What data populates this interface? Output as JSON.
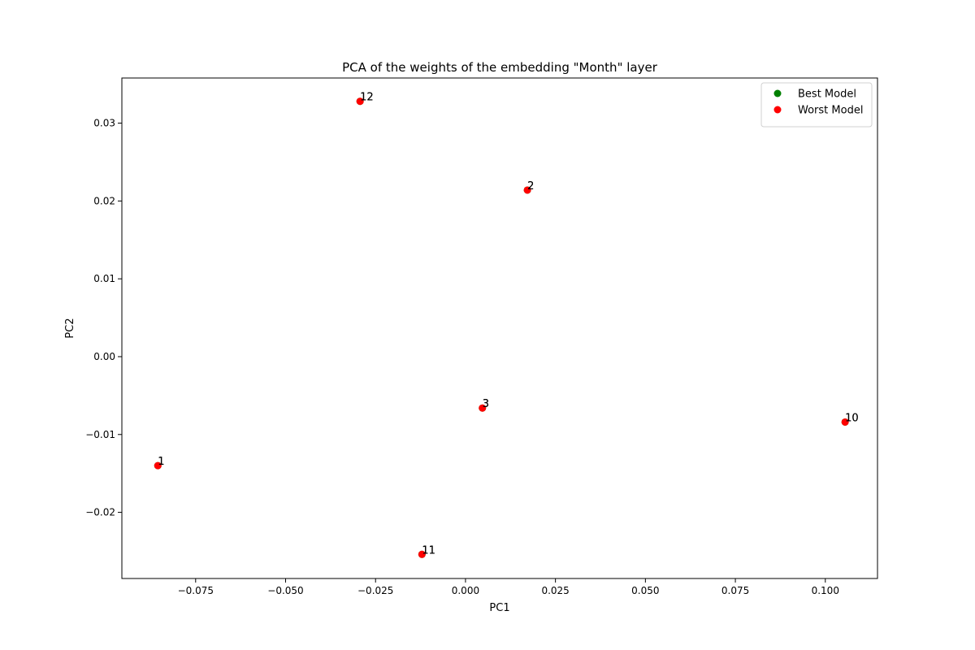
{
  "chart_data": {
    "type": "scatter",
    "title": "PCA of the weights of the embedding \"Month\" layer",
    "xlabel": "PC1",
    "ylabel": "PC2",
    "xlim": [
      -0.0955,
      0.1145
    ],
    "ylim": [
      -0.0285,
      0.0358
    ],
    "xticks": [
      -0.075,
      -0.05,
      -0.025,
      0.0,
      0.025,
      0.05,
      0.075,
      0.1
    ],
    "xtick_labels": [
      "−0.075",
      "−0.050",
      "−0.025",
      "0.000",
      "0.025",
      "0.050",
      "0.075",
      "0.100"
    ],
    "yticks": [
      -0.02,
      -0.01,
      0.0,
      0.01,
      0.02,
      0.03
    ],
    "ytick_labels": [
      "−0.02",
      "−0.01",
      "0.00",
      "0.01",
      "0.02",
      "0.03"
    ],
    "grid": false,
    "legend_position": "top-right",
    "series": [
      {
        "name": "Best Model",
        "color": "#008000",
        "points": [
          {
            "label": "1",
            "x": -0.0855,
            "y": -0.014
          },
          {
            "label": "12",
            "x": -0.0293,
            "y": 0.0328
          },
          {
            "label": "2",
            "x": 0.0172,
            "y": 0.0214
          },
          {
            "label": "3",
            "x": 0.0047,
            "y": -0.0066
          },
          {
            "label": "11",
            "x": -0.0121,
            "y": -0.0254
          },
          {
            "label": "10",
            "x": 0.1055,
            "y": -0.0084
          }
        ]
      },
      {
        "name": "Worst Model",
        "color": "#ff0000",
        "points": [
          {
            "label": "1",
            "x": -0.0855,
            "y": -0.014
          },
          {
            "label": "12",
            "x": -0.0293,
            "y": 0.0328
          },
          {
            "label": "2",
            "x": 0.0172,
            "y": 0.0214
          },
          {
            "label": "3",
            "x": 0.0047,
            "y": -0.0066
          },
          {
            "label": "11",
            "x": -0.0121,
            "y": -0.0254
          },
          {
            "label": "10",
            "x": 0.1055,
            "y": -0.0084
          }
        ]
      }
    ]
  }
}
